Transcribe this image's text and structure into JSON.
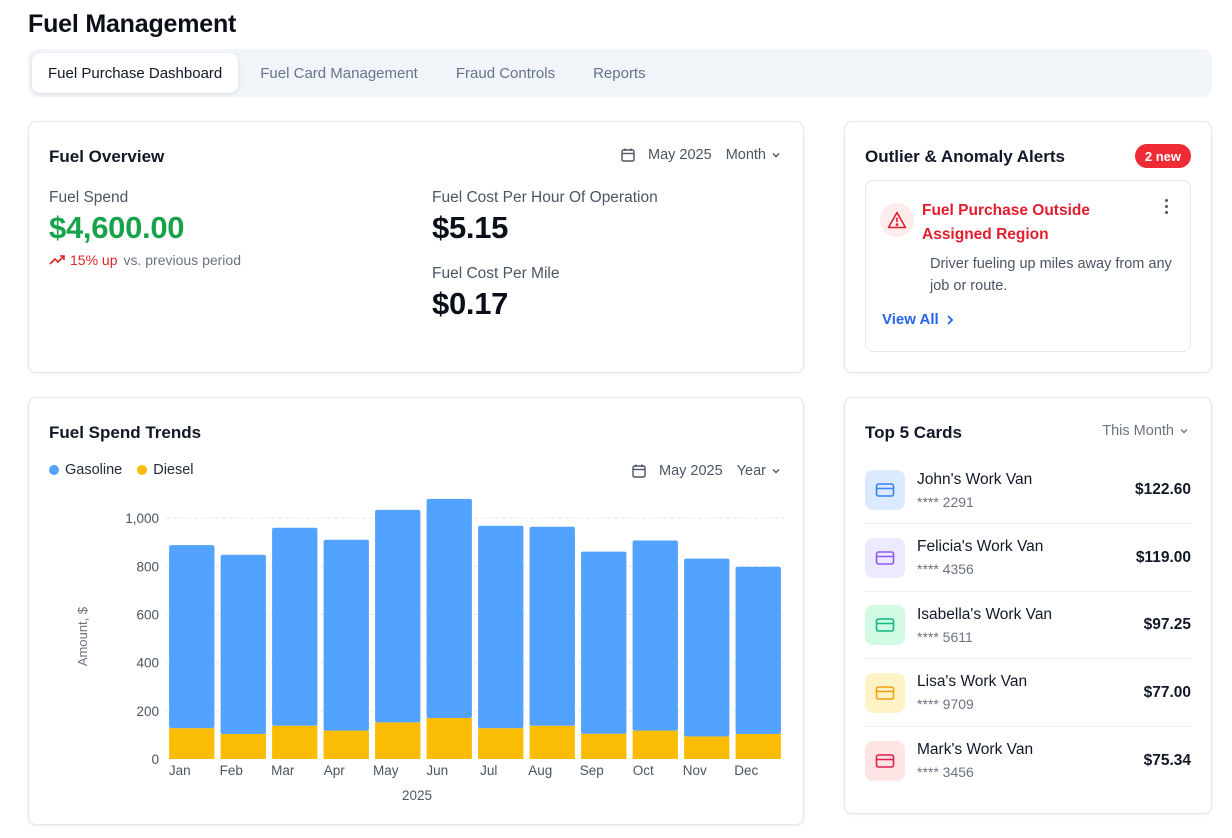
{
  "page": {
    "title": "Fuel Management"
  },
  "tabs": [
    {
      "label": "Fuel Purchase Dashboard",
      "active": true
    },
    {
      "label": "Fuel Card Management",
      "active": false
    },
    {
      "label": "Fraud Controls",
      "active": false
    },
    {
      "label": "Reports",
      "active": false
    }
  ],
  "overview": {
    "title": "Fuel Overview",
    "date": "May 2025",
    "period": "Month",
    "fuel_spend_label": "Fuel Spend",
    "fuel_spend_value": "$4,600.00",
    "trend_value": "15% up",
    "trend_text": "vs. previous period",
    "cost_per_hour_label": "Fuel Cost Per Hour Of Operation",
    "cost_per_hour_value": "$5.15",
    "cost_per_mile_label": "Fuel Cost Per Mile",
    "cost_per_mile_value": "$0.17"
  },
  "alerts": {
    "title": "Outlier & Anomaly Alerts",
    "badge": "2 new",
    "item": {
      "title": "Fuel Purchase Outside Assigned Region",
      "description": "Driver fueling up miles away from any job or route."
    },
    "view_all": "View All"
  },
  "trends": {
    "title": "Fuel Spend Trends",
    "date": "May 2025",
    "period": "Year"
  },
  "top_cards": {
    "title": "Top 5 Cards",
    "period": "This Month",
    "items": [
      {
        "name": "John's Work Van",
        "number": "**** 2291",
        "amount": "$122.60",
        "color": "#3b82f6",
        "bg": "#dbeafe"
      },
      {
        "name": "Felicia's Work Van",
        "number": "**** 4356",
        "amount": "$119.00",
        "color": "#8b5cf6",
        "bg": "#ede9fe"
      },
      {
        "name": "Isabella's Work Van",
        "number": "**** 5611",
        "amount": "$97.25",
        "color": "#10b981",
        "bg": "#d1fae5"
      },
      {
        "name": "Lisa's Work Van",
        "number": "**** 9709",
        "amount": "$77.00",
        "color": "#f59e0b",
        "bg": "#fef3c7"
      },
      {
        "name": "Mark's Work Van",
        "number": "**** 3456",
        "amount": "$75.34",
        "color": "#e11d48",
        "bg": "#ffe4e6"
      }
    ]
  },
  "chart_data": {
    "type": "bar",
    "stacked": true,
    "categories": [
      "Jan",
      "Feb",
      "Mar",
      "Apr",
      "May",
      "Jun",
      "Jul",
      "Aug",
      "Sep",
      "Oct",
      "Nov",
      "Dec"
    ],
    "series": [
      {
        "name": "Diesel",
        "color": "#fbbc05",
        "values": [
          128,
          104,
          138,
          118,
          152,
          170,
          128,
          138,
          105,
          118,
          94,
          104
        ]
      },
      {
        "name": "Gasoline",
        "color": "#52a2ff",
        "values": [
          760,
          744,
          822,
          792,
          882,
          910,
          840,
          826,
          756,
          789,
          738,
          694
        ]
      }
    ],
    "xlabel": "2025",
    "ylabel": "Amount, $",
    "yticks": [
      0,
      200,
      400,
      600,
      800,
      1000
    ],
    "ytick_labels": [
      "0",
      "200",
      "400",
      "600",
      "800",
      "1,000"
    ],
    "ylim": [
      0,
      1100
    ],
    "legend": "top-left",
    "grid": true
  }
}
